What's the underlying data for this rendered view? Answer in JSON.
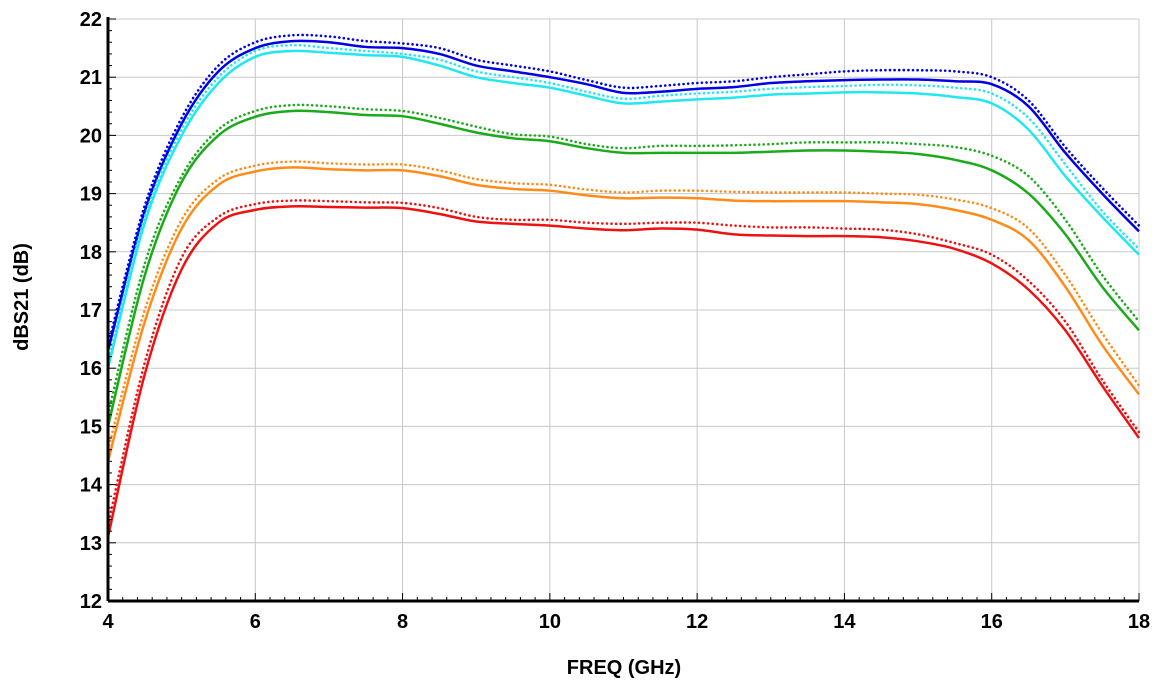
{
  "chart_data": {
    "type": "line",
    "title": "",
    "xlabel": "FREQ (GHz)",
    "ylabel": "dBS21 (dB)",
    "xlim": [
      4,
      18
    ],
    "ylim": [
      12,
      22
    ],
    "x_ticks": [
      4,
      6,
      8,
      10,
      12,
      14,
      16,
      18
    ],
    "y_ticks": [
      12,
      13,
      14,
      15,
      16,
      17,
      18,
      19,
      20,
      21,
      22
    ],
    "grid": true,
    "x": [
      4.0,
      4.5,
      5.0,
      5.5,
      6.0,
      6.5,
      7.0,
      7.5,
      8.0,
      8.5,
      9.0,
      9.5,
      10.0,
      10.5,
      11.0,
      11.5,
      12.0,
      12.5,
      13.0,
      13.5,
      14.0,
      14.5,
      15.0,
      15.5,
      16.0,
      16.5,
      17.0,
      17.5,
      18.0
    ],
    "series": [
      {
        "color": "#0000e6",
        "style": "dotted",
        "values": [
          16.4,
          18.8,
          20.3,
          21.2,
          21.6,
          21.72,
          21.7,
          21.62,
          21.58,
          21.5,
          21.3,
          21.2,
          21.1,
          20.95,
          20.82,
          20.85,
          20.9,
          20.93,
          21.0,
          21.05,
          21.1,
          21.12,
          21.12,
          21.1,
          21.0,
          20.6,
          19.8,
          19.1,
          18.45
        ]
      },
      {
        "color": "#0000e6",
        "style": "solid",
        "values": [
          16.3,
          18.7,
          20.2,
          21.1,
          21.5,
          21.62,
          21.6,
          21.52,
          21.5,
          21.4,
          21.2,
          21.1,
          21.0,
          20.88,
          20.73,
          20.75,
          20.8,
          20.83,
          20.9,
          20.93,
          20.95,
          20.96,
          20.96,
          20.93,
          20.88,
          20.5,
          19.7,
          19.0,
          18.35
        ]
      },
      {
        "color": "#20e8f0",
        "style": "dotted",
        "values": [
          16.1,
          18.6,
          20.1,
          21.0,
          21.45,
          21.55,
          21.5,
          21.45,
          21.4,
          21.3,
          21.1,
          21.0,
          20.9,
          20.75,
          20.63,
          20.68,
          20.72,
          20.75,
          20.8,
          20.83,
          20.85,
          20.87,
          20.86,
          20.82,
          20.72,
          20.3,
          19.5,
          18.7,
          18.05
        ]
      },
      {
        "color": "#20e8f0",
        "style": "solid",
        "values": [
          16.0,
          18.5,
          20.0,
          20.9,
          21.35,
          21.45,
          21.42,
          21.38,
          21.35,
          21.2,
          21.0,
          20.9,
          20.82,
          20.68,
          20.55,
          20.58,
          20.62,
          20.65,
          20.7,
          20.72,
          20.74,
          20.74,
          20.72,
          20.66,
          20.55,
          20.1,
          19.3,
          18.6,
          17.95
        ]
      },
      {
        "color": "#1aaa1a",
        "style": "dotted",
        "values": [
          15.2,
          17.8,
          19.3,
          20.1,
          20.42,
          20.52,
          20.5,
          20.45,
          20.42,
          20.3,
          20.15,
          20.02,
          19.98,
          19.85,
          19.78,
          19.82,
          19.82,
          19.83,
          19.85,
          19.88,
          19.88,
          19.88,
          19.85,
          19.8,
          19.65,
          19.3,
          18.55,
          17.6,
          16.8
        ]
      },
      {
        "color": "#1aaa1a",
        "style": "solid",
        "values": [
          15.0,
          17.6,
          19.2,
          20.0,
          20.32,
          20.42,
          20.4,
          20.35,
          20.33,
          20.2,
          20.05,
          19.95,
          19.9,
          19.78,
          19.7,
          19.7,
          19.7,
          19.7,
          19.72,
          19.74,
          19.74,
          19.72,
          19.68,
          19.58,
          19.4,
          19.0,
          18.3,
          17.4,
          16.65
        ]
      },
      {
        "color": "#ff8c1a",
        "style": "dotted",
        "values": [
          14.6,
          17.0,
          18.55,
          19.25,
          19.48,
          19.55,
          19.52,
          19.5,
          19.5,
          19.4,
          19.25,
          19.18,
          19.15,
          19.07,
          19.02,
          19.05,
          19.05,
          19.03,
          19.02,
          19.02,
          19.02,
          19.0,
          18.98,
          18.9,
          18.75,
          18.4,
          17.6,
          16.6,
          15.7
        ]
      },
      {
        "color": "#ff8c1a",
        "style": "solid",
        "values": [
          14.4,
          16.8,
          18.4,
          19.15,
          19.38,
          19.45,
          19.42,
          19.4,
          19.4,
          19.3,
          19.15,
          19.08,
          19.05,
          18.97,
          18.92,
          18.93,
          18.92,
          18.88,
          18.87,
          18.87,
          18.87,
          18.85,
          18.82,
          18.72,
          18.55,
          18.2,
          17.4,
          16.4,
          15.55
        ]
      },
      {
        "color": "#ee1111",
        "style": "dotted",
        "values": [
          13.3,
          16.1,
          17.9,
          18.6,
          18.82,
          18.88,
          18.87,
          18.85,
          18.84,
          18.75,
          18.6,
          18.55,
          18.55,
          18.5,
          18.48,
          18.5,
          18.5,
          18.45,
          18.42,
          18.42,
          18.4,
          18.38,
          18.3,
          18.15,
          17.95,
          17.5,
          16.8,
          15.8,
          14.9
        ]
      },
      {
        "color": "#ee1111",
        "style": "solid",
        "values": [
          13.1,
          15.9,
          17.7,
          18.5,
          18.72,
          18.78,
          18.77,
          18.76,
          18.75,
          18.65,
          18.52,
          18.48,
          18.45,
          18.4,
          18.37,
          18.4,
          18.38,
          18.3,
          18.28,
          18.27,
          18.27,
          18.25,
          18.18,
          18.05,
          17.8,
          17.35,
          16.65,
          15.7,
          14.8
        ]
      }
    ]
  }
}
